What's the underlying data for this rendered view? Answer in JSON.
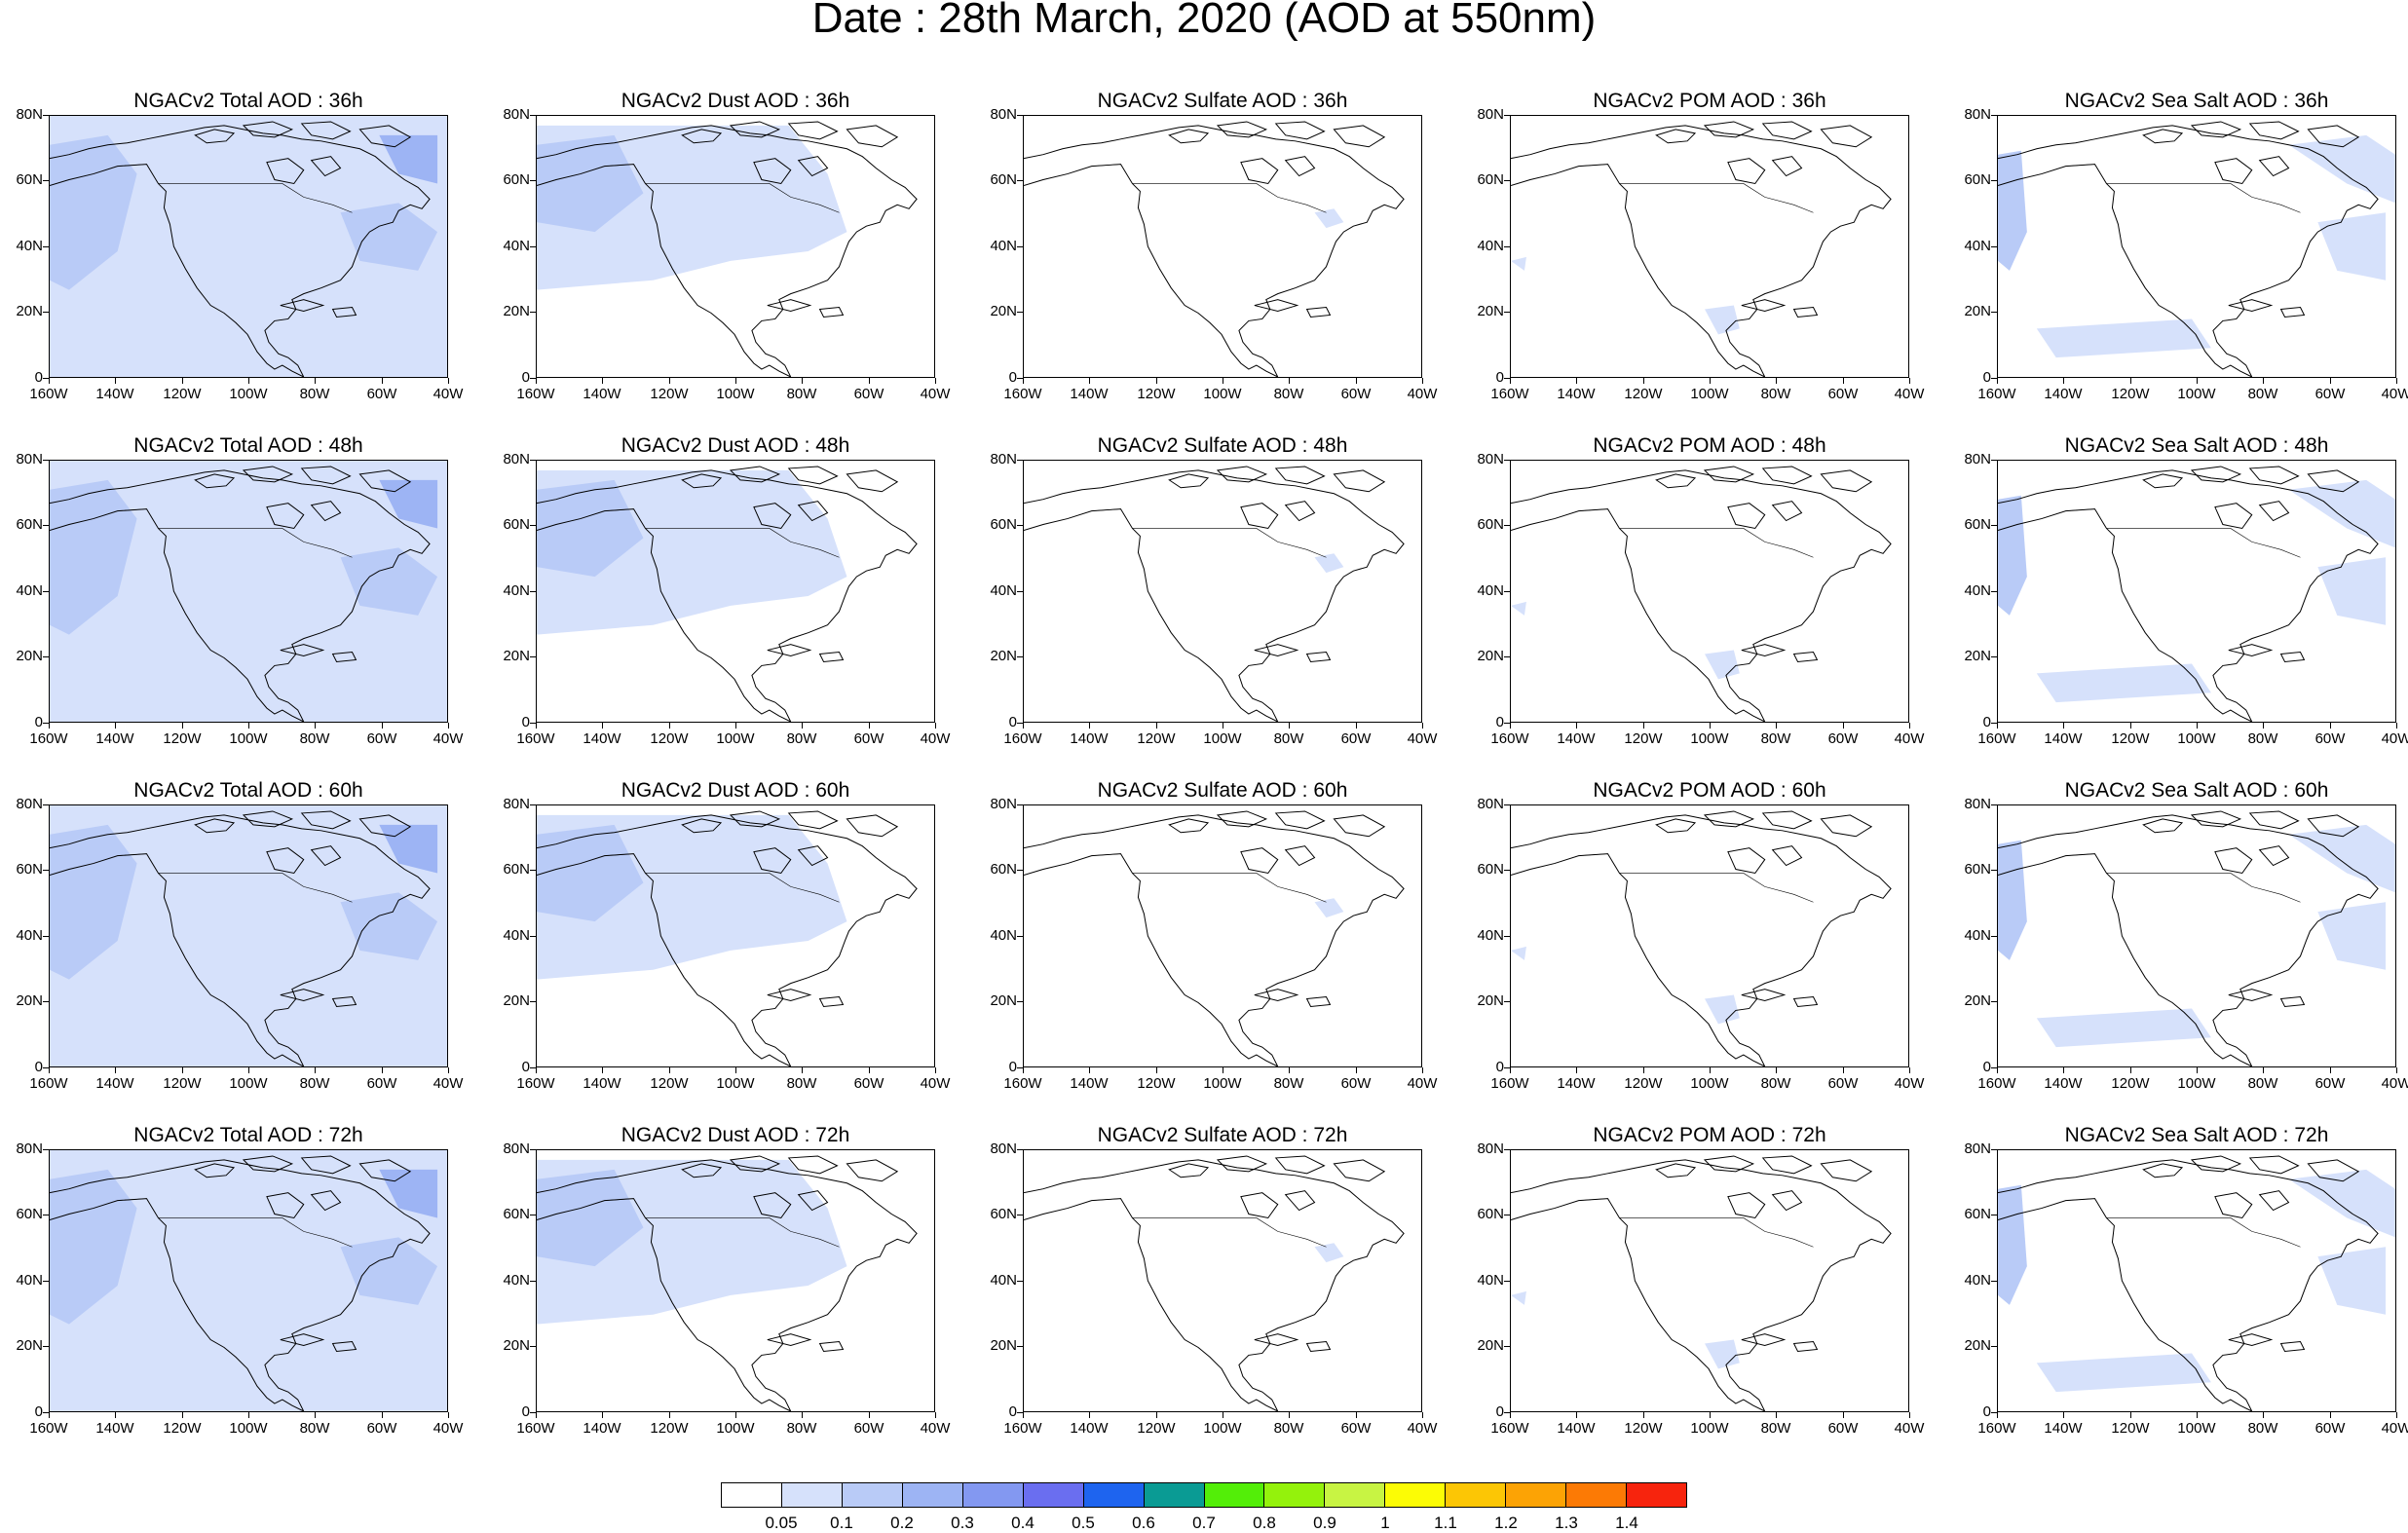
{
  "title": "Date : 28th March, 2020 (AOD at 550nm)",
  "lat_labels": [
    "80N",
    "60N",
    "40N",
    "20N",
    "0"
  ],
  "lon_labels": [
    "160W",
    "140W",
    "120W",
    "100W",
    "80W",
    "60W",
    "40W"
  ],
  "panels": [
    [
      "NGACv2 Total AOD : 36h",
      "NGACv2 Dust AOD : 36h",
      "NGACv2 Sulfate AOD : 36h",
      "NGACv2 POM AOD : 36h",
      "NGACv2 Sea Salt AOD : 36h"
    ],
    [
      "NGACv2 Total AOD : 48h",
      "NGACv2 Dust AOD : 48h",
      "NGACv2 Sulfate AOD : 48h",
      "NGACv2 POM AOD : 48h",
      "NGACv2 Sea Salt AOD : 48h"
    ],
    [
      "NGACv2 Total AOD : 60h",
      "NGACv2 Dust AOD : 60h",
      "NGACv2 Sulfate AOD : 60h",
      "NGACv2 POM AOD : 60h",
      "NGACv2 Sea Salt AOD : 60h"
    ],
    [
      "NGACv2 Total AOD : 72h",
      "NGACv2 Dust AOD : 72h",
      "NGACv2 Sulfate AOD : 72h",
      "NGACv2 POM AOD : 72h",
      "NGACv2 Sea Salt  AOD : 72h"
    ]
  ],
  "colorbar": {
    "labels": [
      "0.05",
      "0.1",
      "0.2",
      "0.3",
      "0.4",
      "0.5",
      "0.6",
      "0.7",
      "0.8",
      "0.9",
      "1",
      "1.1",
      "1.2",
      "1.3",
      "1.4"
    ],
    "colors": [
      "#ffffff",
      "#d6e1fb",
      "#b9cbf7",
      "#9db4f4",
      "#8398f1",
      "#6a6ef0",
      "#1e64ef",
      "#0a9b94",
      "#53ee08",
      "#94f20c",
      "#c8f443",
      "#fcfc05",
      "#fcc605",
      "#fca305",
      "#fc7a05",
      "#f7240d"
    ]
  },
  "map_colors": {
    "light": "#d6e1fb",
    "medium": "#b9cbf7",
    "strong": "#9db4f4",
    "coast": "#000000"
  }
}
